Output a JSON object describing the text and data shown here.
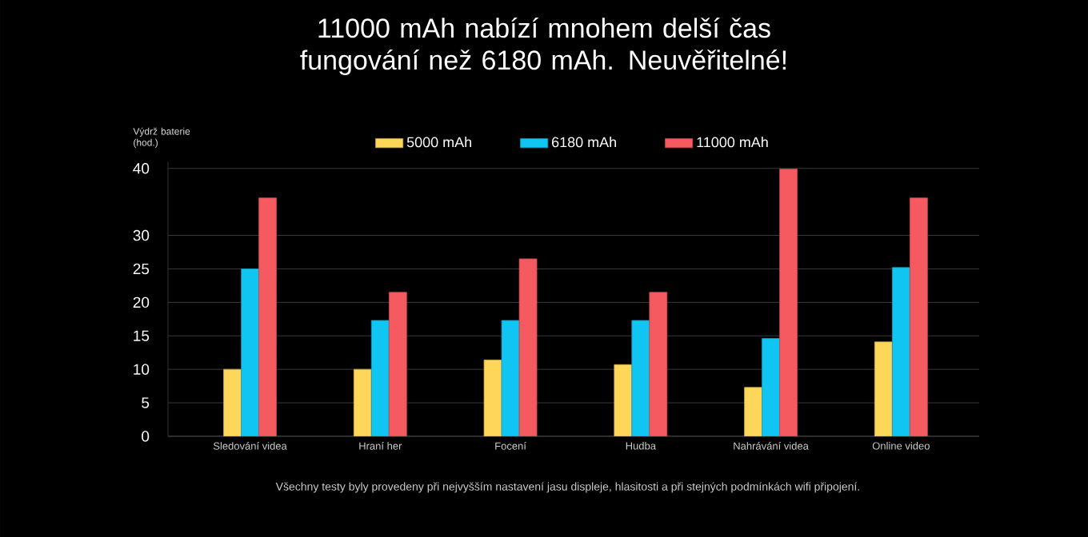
{
  "chart_data": {
    "type": "bar",
    "title": "11000 mAh nabízí mnohem delší čas fungování než 6180 mAh. Neuvěřitelné!",
    "ylabel": "Výdrž baterie (hod.)",
    "categories": [
      "Sledování videa",
      "Hraní her",
      "Focení",
      "Hudba",
      "Nahrávání videa",
      "Online video"
    ],
    "series": [
      {
        "name": "5000 mAh",
        "color": "#fdd65a",
        "values": [
          10,
          10,
          11.4,
          10.7,
          7.3,
          14.1
        ]
      },
      {
        "name": "6180 mAh",
        "color": "#11c5f2",
        "values": [
          25,
          17.3,
          17.3,
          17.3,
          14.6,
          25.2
        ]
      },
      {
        "name": "11000 mAh",
        "color": "#f65a61",
        "values": [
          35.6,
          21.5,
          26.5,
          21.5,
          39.9,
          35.6
        ]
      }
    ],
    "ylim": [
      0,
      41
    ],
    "yticks": [
      0,
      5,
      10,
      15,
      20,
      25,
      30,
      40
    ],
    "grid": "y",
    "legend": "top",
    "annotations": [
      "Všechny testy byly provedeny při nejvyšším nastavení jasu displeje, hlasitosti a při stejných podmínkách wifi připojení."
    ]
  }
}
